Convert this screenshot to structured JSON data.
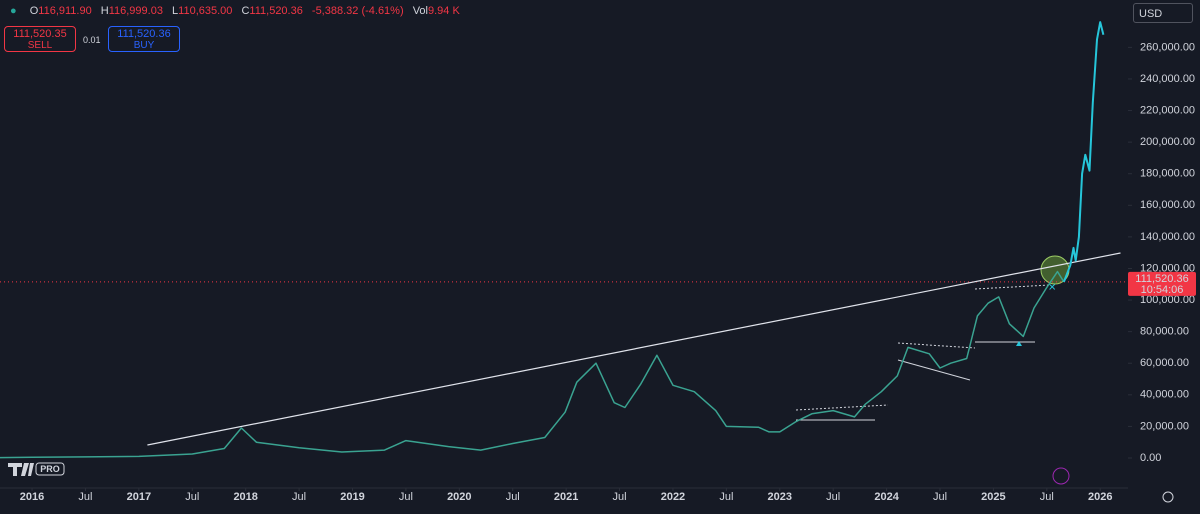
{
  "chart_data": {
    "type": "line",
    "header": {
      "ohlc": [
        {
          "label": "O",
          "value": "116,911.90"
        },
        {
          "label": "H",
          "value": "116,999.03"
        },
        {
          "label": "L",
          "value": "110,635.00"
        },
        {
          "label": "C",
          "value": "111,520.36"
        }
      ],
      "change": "-5,388.32 (-4.61%)",
      "volume_label": "Vol",
      "volume": "9.94 K"
    },
    "trade": {
      "sell_price": "111,520.35",
      "sell": "SELL",
      "quantity": "0.01",
      "buy_price": "111,520.36",
      "buy": "BUY"
    },
    "currency": "USD",
    "logo": "PRO",
    "last_price": {
      "value": 111520.36,
      "label": "111,520.36",
      "countdown": "10:54:06",
      "color": "#f23645"
    },
    "color": "#3aa391",
    "x": [
      2015.7,
      2016.0,
      2016.5,
      2017.0,
      2017.5,
      2017.8,
      2017.96,
      2018.1,
      2018.5,
      2018.9,
      2019.3,
      2019.5,
      2019.9,
      2020.2,
      2020.5,
      2020.8,
      2020.99,
      2021.1,
      2021.28,
      2021.45,
      2021.55,
      2021.7,
      2021.85,
      2022.0,
      2022.2,
      2022.4,
      2022.5,
      2022.8,
      2022.9,
      2023.0,
      2023.15,
      2023.3,
      2023.5,
      2023.7,
      2023.8,
      2023.95,
      2024.1,
      2024.2,
      2024.4,
      2024.5,
      2024.6,
      2024.75,
      2024.85,
      2024.95,
      2025.05,
      2025.15,
      2025.28,
      2025.38,
      2025.5,
      2025.6,
      2025.66
    ],
    "values": [
      250,
      430,
      670,
      1000,
      2500,
      6000,
      19000,
      10000,
      6500,
      3800,
      5000,
      11000,
      7200,
      5000,
      9200,
      13000,
      29000,
      48000,
      60000,
      35000,
      32000,
      47000,
      65000,
      46000,
      42000,
      30000,
      20000,
      19500,
      16500,
      16500,
      23000,
      28000,
      30000,
      26000,
      34000,
      42000,
      52000,
      70000,
      66000,
      57000,
      60000,
      63000,
      90000,
      98000,
      102000,
      85000,
      77000,
      95000,
      108000,
      118000,
      111520
    ],
    "projection": {
      "color": "#26c6da",
      "x": [
        2025.66,
        2025.72,
        2025.75,
        2025.77,
        2025.8,
        2025.83,
        2025.86,
        2025.9,
        2025.93,
        2025.97,
        2026.0,
        2026.03
      ],
      "values": [
        111520,
        122000,
        133000,
        125000,
        140000,
        180000,
        192000,
        182000,
        225000,
        265000,
        276000,
        268000
      ]
    },
    "trendline": {
      "color": "#e0e3eb",
      "x": [
        2017.08,
        2026.19
      ],
      "values": [
        8227,
        129800
      ]
    },
    "xlim": [
      2015.7,
      2026.26
    ],
    "ylim": [
      -19000,
      290000
    ],
    "xticks": [
      2016,
      {
        "value": 2016.5,
        "label": "Jul"
      },
      2017,
      {
        "value": 2017.5,
        "label": "Jul"
      },
      2018,
      {
        "value": 2018.5,
        "label": "Jul"
      },
      2019,
      {
        "value": 2019.5,
        "label": "Jul"
      },
      2020,
      {
        "value": 2020.5,
        "label": "Jul"
      },
      2021,
      {
        "value": 2021.5,
        "label": "Jul"
      },
      2022,
      {
        "value": 2022.5,
        "label": "Jul"
      },
      2023,
      {
        "value": 2023.5,
        "label": "Jul"
      },
      2024,
      {
        "value": 2024.5,
        "label": "Jul"
      },
      2025,
      {
        "value": 2025.5,
        "label": "Jul"
      },
      2026
    ],
    "yticks": [
      {
        "value": 0,
        "label": "0.00"
      },
      {
        "value": 20000,
        "label": "20,000.00"
      },
      {
        "value": 40000,
        "label": "40,000.00"
      },
      {
        "value": 60000,
        "label": "60,000.00"
      },
      {
        "value": 80000,
        "label": "80,000.00"
      },
      {
        "value": 100000,
        "label": "100,000.00"
      },
      {
        "value": 120000,
        "label": "120,000.00"
      },
      {
        "value": 140000,
        "label": "140,000.00"
      },
      {
        "value": 160000,
        "label": "160,000.00"
      },
      {
        "value": 180000,
        "label": "180,000.00"
      },
      {
        "value": 200000,
        "label": "200,000.00"
      },
      {
        "value": 220000,
        "label": "220,000.00"
      },
      {
        "value": 240000,
        "label": "240,000.00"
      },
      {
        "value": 260000,
        "label": "260,000.00"
      }
    ],
    "grid": false
  }
}
